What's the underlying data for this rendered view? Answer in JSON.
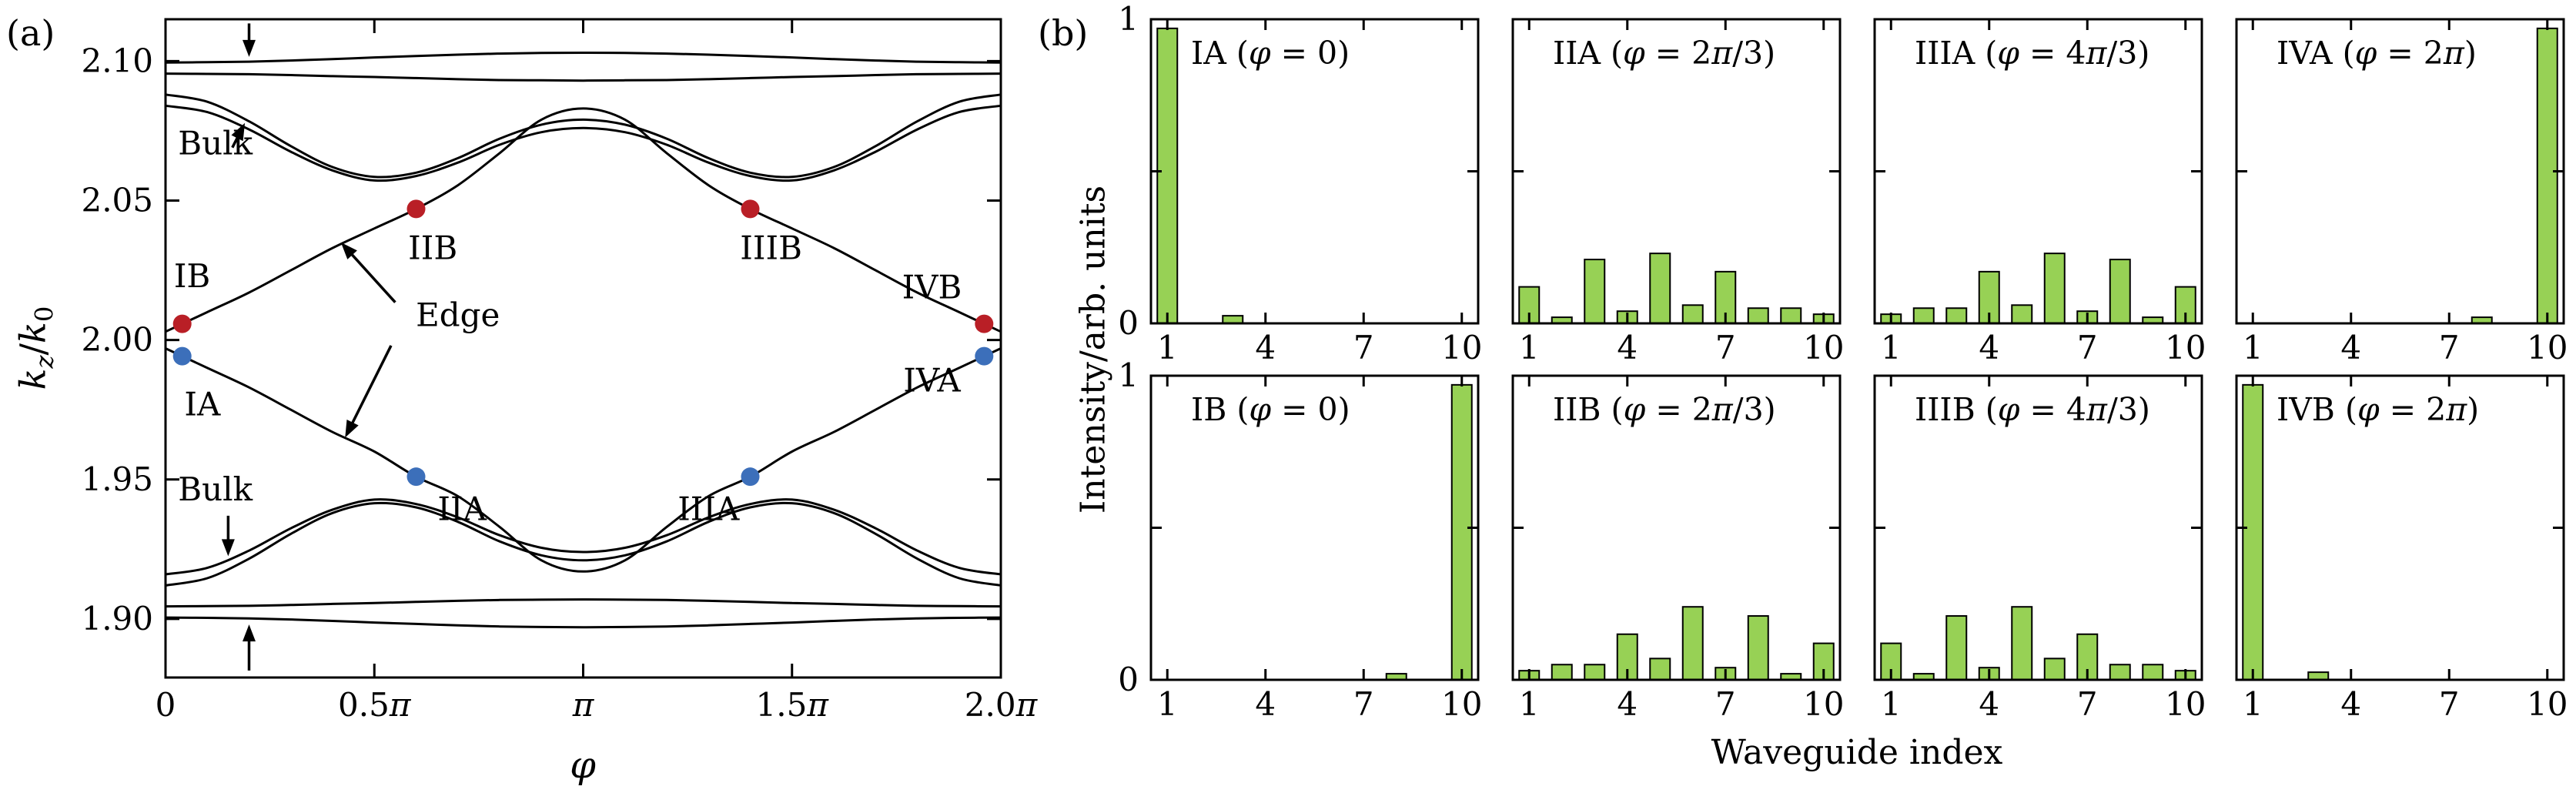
{
  "colors": {
    "blue": "#3c6fba",
    "red": "#b91f26",
    "bar_fill": "#97d155",
    "bar_edge": "#000000",
    "curve": "#000000",
    "frame": "#000000"
  },
  "chart_data": [
    {
      "id": "panel_a",
      "type": "line",
      "label": "(a)",
      "xlabel": "φ",
      "ylabel": "k_z/k_0",
      "xlim": [
        0,
        2
      ],
      "ylim": [
        1.879,
        2.115
      ],
      "grid": false,
      "xticks": [
        {
          "v": 0,
          "t": "0"
        },
        {
          "v": 0.5,
          "t": "0.5π"
        },
        {
          "v": 1,
          "t": "π"
        },
        {
          "v": 1.5,
          "t": "1.5π"
        },
        {
          "v": 2,
          "t": "2.0π"
        }
      ],
      "yticks": [
        {
          "v": 1.9,
          "t": "1.90"
        },
        {
          "v": 1.95,
          "t": "1.95"
        },
        {
          "v": 2.0,
          "t": "2.00"
        },
        {
          "v": 2.05,
          "t": "2.05"
        },
        {
          "v": 2.1,
          "t": "2.10"
        }
      ],
      "curve_x": {
        "start": 0,
        "step": 0.1
      },
      "curves": [
        {
          "name": "bulk-upper-1",
          "ys": [
            2.0995,
            2.0996,
            2.0998,
            2.1002,
            2.1007,
            2.1013,
            2.1018,
            2.1023,
            2.1027,
            2.1029,
            2.103,
            2.1029,
            2.1027,
            2.1023,
            2.1018,
            2.1013,
            2.1007,
            2.1002,
            2.0998,
            2.0996,
            2.0995
          ]
        },
        {
          "name": "bulk-upper-2",
          "ys": [
            2.0955,
            2.0954,
            2.0953,
            2.095,
            2.0946,
            2.0943,
            2.0939,
            2.0935,
            2.0932,
            2.0931,
            2.093,
            2.0931,
            2.0932,
            2.0935,
            2.0939,
            2.0943,
            2.0946,
            2.095,
            2.0953,
            2.0954,
            2.0955
          ]
        },
        {
          "name": "bulk-upper-3",
          "ys": [
            2.088,
            2.0854,
            2.0784,
            2.0695,
            2.062,
            2.0585,
            2.06,
            2.0652,
            2.0722,
            2.0772,
            2.079,
            2.0772,
            2.0722,
            2.0652,
            2.06,
            2.0585,
            2.062,
            2.0695,
            2.0784,
            2.0854,
            2.088
          ]
        },
        {
          "name": "bulk-upper-4",
          "ys": [
            2.084,
            2.0817,
            2.0755,
            2.0675,
            2.0608,
            2.0572,
            2.0588,
            2.0636,
            2.07,
            2.0745,
            2.076,
            2.0745,
            2.07,
            2.0636,
            2.0588,
            2.0572,
            2.0608,
            2.0675,
            2.0755,
            2.0817,
            2.084
          ]
        },
        {
          "name": "edge-upper",
          "ys": [
            2.003,
            2.01,
            2.017,
            2.025,
            2.033,
            2.04,
            2.047,
            2.0555,
            2.067,
            2.079,
            2.083,
            2.079,
            2.067,
            2.0555,
            2.047,
            2.04,
            2.033,
            2.025,
            2.017,
            2.01,
            2.003
          ]
        },
        {
          "name": "edge-lower",
          "ys": [
            1.997,
            1.99,
            1.983,
            1.975,
            1.967,
            1.96,
            1.951,
            1.944,
            1.933,
            1.921,
            1.917,
            1.921,
            1.933,
            1.944,
            1.951,
            1.96,
            1.967,
            1.975,
            1.983,
            1.99,
            1.997
          ]
        },
        {
          "name": "bulk-lower-1",
          "ys": [
            1.916,
            1.9183,
            1.9245,
            1.9325,
            1.9392,
            1.9428,
            1.9412,
            1.9364,
            1.93,
            1.9255,
            1.924,
            1.9255,
            1.93,
            1.9364,
            1.9412,
            1.9428,
            1.9392,
            1.9325,
            1.9245,
            1.9183,
            1.916
          ]
        },
        {
          "name": "bulk-lower-2",
          "ys": [
            1.912,
            1.9146,
            1.9216,
            1.9305,
            1.938,
            1.9415,
            1.94,
            1.9348,
            1.9278,
            1.9228,
            1.921,
            1.9228,
            1.9278,
            1.9348,
            1.94,
            1.9415,
            1.938,
            1.9305,
            1.9216,
            1.9146,
            1.912
          ]
        },
        {
          "name": "bulk-lower-3",
          "ys": [
            1.9045,
            1.9046,
            1.9047,
            1.905,
            1.9054,
            1.9057,
            1.9061,
            1.9065,
            1.9068,
            1.9069,
            1.907,
            1.9069,
            1.9068,
            1.9065,
            1.9061,
            1.9057,
            1.9054,
            1.905,
            1.9047,
            1.9046,
            1.9045
          ]
        },
        {
          "name": "bulk-lower-4",
          "ys": [
            1.9005,
            1.9004,
            1.9002,
            1.8998,
            1.8993,
            1.8987,
            1.8982,
            1.8977,
            1.8973,
            1.8971,
            1.897,
            1.8971,
            1.8973,
            1.8977,
            1.8982,
            1.8987,
            1.8993,
            1.8998,
            1.9002,
            1.9004,
            1.9005
          ]
        }
      ],
      "points": [
        {
          "label": "IB",
          "x": 0.04,
          "y": 2.0058,
          "color": "red",
          "label_x": 0.02,
          "label_y": 2.019,
          "anchor": "start"
        },
        {
          "label": "IA",
          "x": 0.04,
          "y": 1.9942,
          "color": "blue",
          "label_x": 0.045,
          "label_y": 1.973,
          "anchor": "start"
        },
        {
          "label": "IIB",
          "x": 0.6,
          "y": 2.047,
          "color": "red",
          "label_x": 0.64,
          "label_y": 2.029,
          "anchor": "middle"
        },
        {
          "label": "IIA",
          "x": 0.6,
          "y": 1.951,
          "color": "blue",
          "label_x": 0.71,
          "label_y": 1.9355,
          "anchor": "middle"
        },
        {
          "label": "IIIB",
          "x": 1.4,
          "y": 2.047,
          "color": "red",
          "label_x": 1.45,
          "label_y": 2.029,
          "anchor": "middle"
        },
        {
          "label": "IIIA",
          "x": 1.4,
          "y": 1.951,
          "color": "blue",
          "label_x": 1.3,
          "label_y": 1.9355,
          "anchor": "middle"
        },
        {
          "label": "IVB",
          "x": 1.96,
          "y": 2.0058,
          "color": "red",
          "label_x": 1.835,
          "label_y": 2.015,
          "anchor": "middle"
        },
        {
          "label": "IVA",
          "x": 1.96,
          "y": 1.9942,
          "color": "blue",
          "label_x": 1.835,
          "label_y": 1.9815,
          "anchor": "middle"
        }
      ],
      "texts": [
        {
          "text": "Bulk",
          "x": 0.03,
          "y": 2.0665,
          "anchor": "start"
        },
        {
          "text": "Edge",
          "x": 0.7,
          "y": 2.005,
          "anchor": "middle"
        },
        {
          "text": "Bulk",
          "x": 0.03,
          "y": 1.9425,
          "anchor": "start"
        }
      ],
      "arrows": [
        {
          "x1": 0.2,
          "y1": 2.1135,
          "x2": 0.2,
          "y2": 2.1015
        },
        {
          "x1": 0.16,
          "y1": 2.069,
          "x2": 0.19,
          "y2": 2.0778
        },
        {
          "x1": 0.55,
          "y1": 2.0135,
          "x2": 0.42,
          "y2": 2.035
        },
        {
          "x1": 0.54,
          "y1": 1.998,
          "x2": 0.43,
          "y2": 1.965
        },
        {
          "x1": 0.15,
          "y1": 1.937,
          "x2": 0.15,
          "y2": 1.9225
        },
        {
          "x1": 0.2,
          "y1": 1.8815,
          "x2": 0.2,
          "y2": 1.898
        }
      ]
    },
    {
      "id": "panel_b",
      "type": "bar",
      "label": "(b)",
      "xlabel": "Waveguide index",
      "ylabel": "Intensity/arb. units",
      "categories": [
        1,
        2,
        3,
        4,
        5,
        6,
        7,
        8,
        9,
        10
      ],
      "xticks": [
        1,
        4,
        7,
        10
      ],
      "ylim": [
        0,
        1
      ],
      "yticks": [
        {
          "v": 0,
          "t": "0"
        },
        {
          "v": 0.5,
          "t": ""
        },
        {
          "v": 1,
          "t": "1"
        }
      ],
      "subplots": [
        {
          "id": "IA",
          "title": "IA (φ = 0)",
          "title_color": "blue",
          "values": [
            0.97,
            0,
            0.025,
            0,
            0,
            0,
            0,
            0,
            0,
            0
          ]
        },
        {
          "id": "IIA",
          "title": "IIA (φ = 2π/3)",
          "title_color": "blue",
          "values": [
            0.12,
            0.02,
            0.21,
            0.04,
            0.23,
            0.06,
            0.17,
            0.05,
            0.05,
            0.03
          ]
        },
        {
          "id": "IIIA",
          "title": "IIIA (φ = 4π/3)",
          "title_color": "blue",
          "values": [
            0.03,
            0.05,
            0.05,
            0.17,
            0.06,
            0.23,
            0.04,
            0.21,
            0.02,
            0.12
          ]
        },
        {
          "id": "IVA",
          "title": "IVA (φ = 2π)",
          "title_color": "blue",
          "values": [
            0,
            0,
            0,
            0,
            0,
            0,
            0,
            0.02,
            0,
            0.97
          ]
        },
        {
          "id": "IB",
          "title": "IB (φ = 0)",
          "title_color": "red",
          "values": [
            0,
            0,
            0,
            0,
            0,
            0,
            0,
            0.02,
            0,
            0.97
          ]
        },
        {
          "id": "IIB",
          "title": "IIB (φ = 2π/3)",
          "title_color": "red",
          "values": [
            0.03,
            0.05,
            0.05,
            0.15,
            0.07,
            0.24,
            0.04,
            0.21,
            0.02,
            0.12
          ]
        },
        {
          "id": "IIIB",
          "title": "IIIB (φ = 4π/3)",
          "title_color": "red",
          "values": [
            0.12,
            0.02,
            0.21,
            0.04,
            0.24,
            0.07,
            0.15,
            0.05,
            0.05,
            0.03
          ]
        },
        {
          "id": "IVB",
          "title": "IVB (φ = 2π)",
          "title_color": "red",
          "values": [
            0.97,
            0,
            0.025,
            0,
            0,
            0,
            0,
            0,
            0,
            0
          ]
        }
      ]
    }
  ]
}
